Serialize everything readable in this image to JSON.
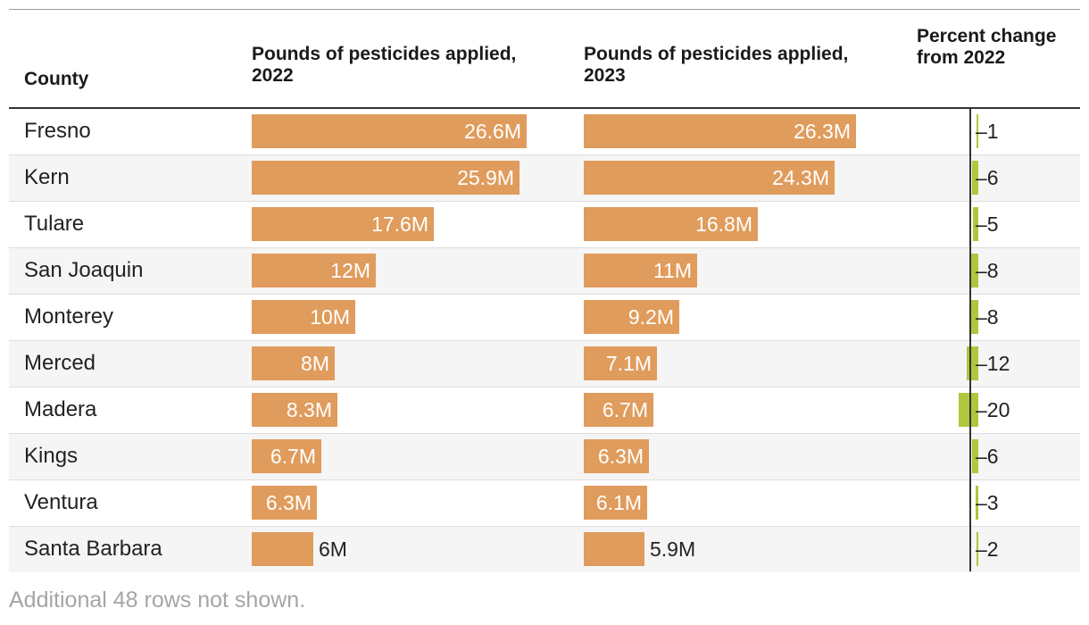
{
  "headers": {
    "county": "County",
    "y2022": "Pounds of pesticides applied, 2022",
    "y2023": "Pounds of pesticides applied, 2023",
    "pct": "Percent change from 2022"
  },
  "colors": {
    "bar": "#e09c5c",
    "pct_bar": "#aec73c"
  },
  "footnote": "Additional 48 rows not shown.",
  "chart_data": {
    "type": "table",
    "bar_max": 26.6,
    "pct_max_abs": 20,
    "rows": [
      {
        "county": "Fresno",
        "v2022": 26.6,
        "l2022": "26.6M",
        "v2023": 26.3,
        "l2023": "26.3M",
        "pct": -1,
        "pct_label": "–1"
      },
      {
        "county": "Kern",
        "v2022": 25.9,
        "l2022": "25.9M",
        "v2023": 24.3,
        "l2023": "24.3M",
        "pct": -6,
        "pct_label": "–6"
      },
      {
        "county": "Tulare",
        "v2022": 17.6,
        "l2022": "17.6M",
        "v2023": 16.8,
        "l2023": "16.8M",
        "pct": -5,
        "pct_label": "–5"
      },
      {
        "county": "San Joaquin",
        "v2022": 12,
        "l2022": "12M",
        "v2023": 11,
        "l2023": "11M",
        "pct": -8,
        "pct_label": "–8"
      },
      {
        "county": "Monterey",
        "v2022": 10,
        "l2022": "10M",
        "v2023": 9.2,
        "l2023": "9.2M",
        "pct": -8,
        "pct_label": "–8"
      },
      {
        "county": "Merced",
        "v2022": 8,
        "l2022": "8M",
        "v2023": 7.1,
        "l2023": "7.1M",
        "pct": -12,
        "pct_label": "–12"
      },
      {
        "county": "Madera",
        "v2022": 8.3,
        "l2022": "8.3M",
        "v2023": 6.7,
        "l2023": "6.7M",
        "pct": -20,
        "pct_label": "–20"
      },
      {
        "county": "Kings",
        "v2022": 6.7,
        "l2022": "6.7M",
        "v2023": 6.3,
        "l2023": "6.3M",
        "pct": -6,
        "pct_label": "–6"
      },
      {
        "county": "Ventura",
        "v2022": 6.3,
        "l2022": "6.3M",
        "v2023": 6.1,
        "l2023": "6.1M",
        "pct": -3,
        "pct_label": "–3"
      },
      {
        "county": "Santa Barbara",
        "v2022": 6,
        "l2022": "6M",
        "v2023": 5.9,
        "l2023": "5.9M",
        "pct": -2,
        "pct_label": "–2"
      }
    ]
  }
}
